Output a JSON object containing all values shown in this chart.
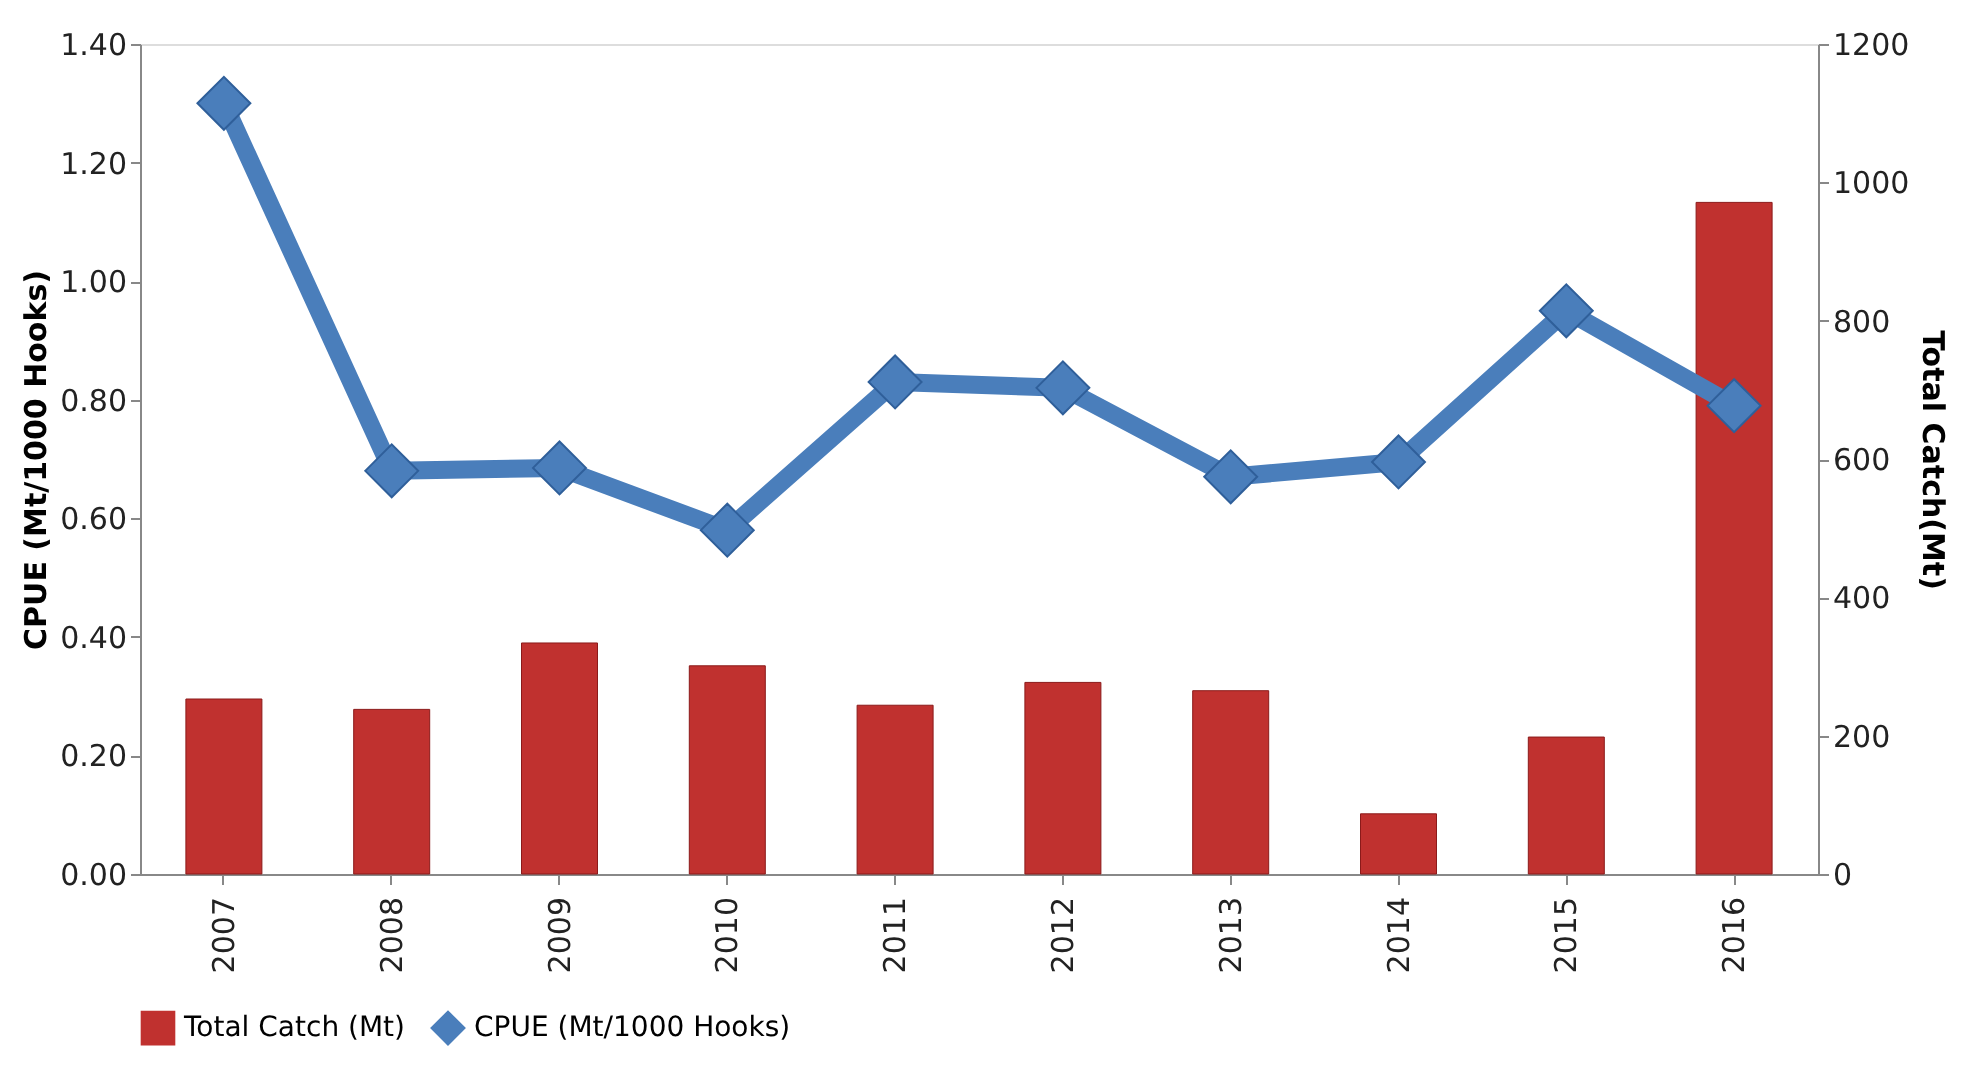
{
  "chart_data": {
    "type": "bar",
    "xlabel": null,
    "ylabel": "CPUE (Mt/1000 Hooks)",
    "y2label": "Total Catch(Mt)",
    "categories": [
      "2007",
      "2008",
      "2009",
      "2010",
      "2011",
      "2012",
      "2013",
      "2014",
      "2015",
      "2016"
    ],
    "series": [
      {
        "name": "Total Catch (Mt)",
        "axis": "y2",
        "color": "#c0312f",
        "values": [
          253,
          238,
          334,
          301,
          244,
          277,
          265,
          87,
          198,
          971
        ]
      },
      {
        "name": "CPUE (Mt/1000 Hooks)",
        "type": "line",
        "axis": "y",
        "color": "#4a7ebb",
        "marker": "diamond",
        "values": [
          1.3,
          0.68,
          0.685,
          0.58,
          0.83,
          0.82,
          0.67,
          0.695,
          0.95,
          0.79
        ]
      }
    ],
    "ylim": [
      0,
      1.4
    ],
    "yticks": [
      {
        "value": 0,
        "label": "0.00"
      },
      {
        "value": 0.2,
        "label": "0.20"
      },
      {
        "value": 0.4,
        "label": "0.40"
      },
      {
        "value": 0.6,
        "label": "0.60"
      },
      {
        "value": 0.8,
        "label": "0.80"
      },
      {
        "value": 1.0,
        "label": "1.00"
      },
      {
        "value": 1.2,
        "label": "1.20"
      },
      {
        "value": 1.4,
        "label": "1.40"
      }
    ],
    "y2lim": [
      0,
      1200
    ],
    "y2ticks": [
      0,
      200,
      400,
      600,
      800,
      1000,
      1200
    ],
    "legend": "bottom",
    "grid": false
  }
}
